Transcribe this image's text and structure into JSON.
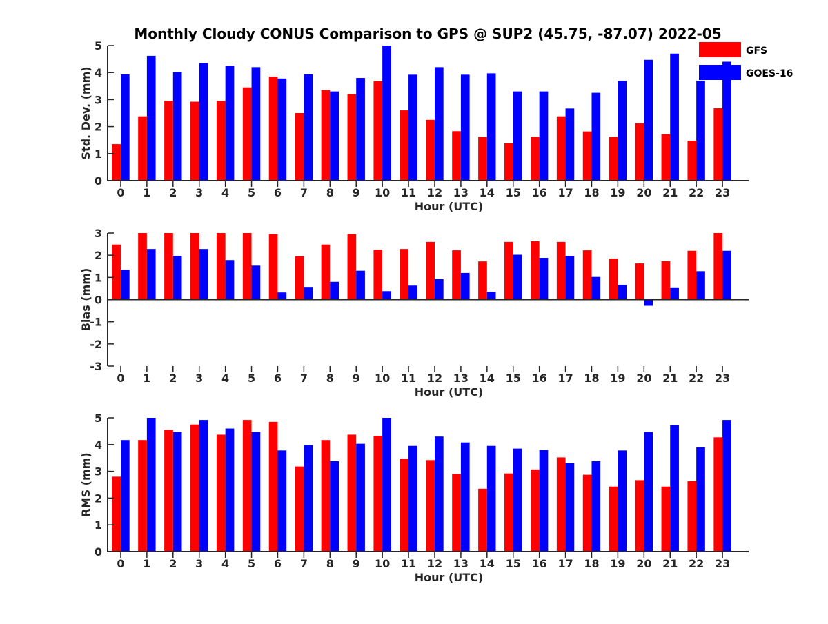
{
  "title": "Monthly Cloudy CONUS Comparison to GPS @ SUP2 (45.75, -87.07) 2022-05",
  "legend": {
    "placement": "top-right, outside first panel",
    "items": [
      {
        "label": "GFS",
        "color": "#ff0000"
      },
      {
        "label": "GOES-16",
        "color": "#0000ff"
      }
    ]
  },
  "chart_data": [
    {
      "type": "bar",
      "categories": [
        "0",
        "1",
        "2",
        "3",
        "4",
        "5",
        "6",
        "7",
        "8",
        "9",
        "10",
        "11",
        "12",
        "13",
        "14",
        "15",
        "16",
        "17",
        "18",
        "19",
        "20",
        "21",
        "22",
        "23"
      ],
      "xlabel": "Hour (UTC)",
      "ylabel": "Std. Dev. (mm)",
      "ylim": [
        0,
        5
      ],
      "yticks": [
        "0",
        "1",
        "2",
        "3",
        "4",
        "5"
      ],
      "grid": false,
      "series": [
        {
          "name": "GFS",
          "color": "#ff0000",
          "values": [
            1.35,
            2.38,
            2.95,
            2.92,
            2.95,
            3.45,
            3.85,
            2.5,
            3.35,
            3.2,
            3.68,
            2.6,
            2.25,
            1.83,
            1.62,
            1.38,
            1.62,
            2.38,
            1.82,
            1.62,
            2.12,
            1.72,
            1.48,
            2.68
          ]
        },
        {
          "name": "GOES-16",
          "color": "#0000ff",
          "values": [
            3.93,
            4.62,
            4.02,
            4.35,
            4.25,
            4.2,
            3.78,
            3.93,
            3.3,
            3.8,
            5.0,
            3.92,
            4.2,
            3.92,
            3.97,
            3.3,
            3.3,
            2.67,
            3.25,
            3.7,
            4.47,
            4.7,
            3.7,
            4.4
          ]
        }
      ]
    },
    {
      "type": "bar",
      "categories": [
        "0",
        "1",
        "2",
        "3",
        "4",
        "5",
        "6",
        "7",
        "8",
        "9",
        "10",
        "11",
        "12",
        "13",
        "14",
        "15",
        "16",
        "17",
        "18",
        "19",
        "20",
        "21",
        "22",
        "23"
      ],
      "xlabel": "Hour (UTC)",
      "ylabel": "Bias (mm)",
      "ylim": [
        -3,
        3
      ],
      "yticks": [
        "-3",
        "-2",
        "-1",
        "0",
        "1",
        "2",
        "3"
      ],
      "grid": false,
      "series": [
        {
          "name": "GFS",
          "color": "#ff0000",
          "values": [
            2.48,
            3.0,
            3.0,
            3.0,
            3.0,
            3.0,
            2.95,
            1.95,
            2.48,
            2.95,
            2.25,
            2.28,
            2.6,
            2.22,
            1.72,
            2.6,
            2.63,
            2.6,
            2.22,
            1.85,
            1.63,
            1.73,
            2.2,
            3.0
          ]
        },
        {
          "name": "GOES-16",
          "color": "#0000ff",
          "values": [
            1.35,
            2.28,
            1.97,
            2.28,
            1.78,
            1.53,
            0.32,
            0.57,
            0.8,
            1.3,
            0.38,
            0.63,
            0.92,
            1.2,
            0.35,
            2.02,
            1.88,
            1.97,
            1.02,
            0.67,
            -0.28,
            0.55,
            1.28,
            2.2
          ]
        }
      ]
    },
    {
      "type": "bar",
      "categories": [
        "0",
        "1",
        "2",
        "3",
        "4",
        "5",
        "6",
        "7",
        "8",
        "9",
        "10",
        "11",
        "12",
        "13",
        "14",
        "15",
        "16",
        "17",
        "18",
        "19",
        "20",
        "21",
        "22",
        "23"
      ],
      "xlabel": "Hour (UTC)",
      "ylabel": "RMS (mm)",
      "ylim": [
        0,
        5
      ],
      "yticks": [
        "0",
        "1",
        "2",
        "3",
        "4",
        "5"
      ],
      "grid": false,
      "series": [
        {
          "name": "GFS",
          "color": "#ff0000",
          "values": [
            2.8,
            4.17,
            4.55,
            4.75,
            4.37,
            4.92,
            4.85,
            3.18,
            4.17,
            4.37,
            4.33,
            3.47,
            3.42,
            2.9,
            2.35,
            2.92,
            3.07,
            3.52,
            2.87,
            2.43,
            2.67,
            2.43,
            2.63,
            4.27
          ]
        },
        {
          "name": "GOES-16",
          "color": "#0000ff",
          "values": [
            4.17,
            5.0,
            4.47,
            4.92,
            4.6,
            4.47,
            3.78,
            3.98,
            3.38,
            4.03,
            5.0,
            3.95,
            4.3,
            4.08,
            3.95,
            3.85,
            3.8,
            3.3,
            3.38,
            3.78,
            4.47,
            4.73,
            3.9,
            4.92
          ]
        }
      ]
    }
  ]
}
